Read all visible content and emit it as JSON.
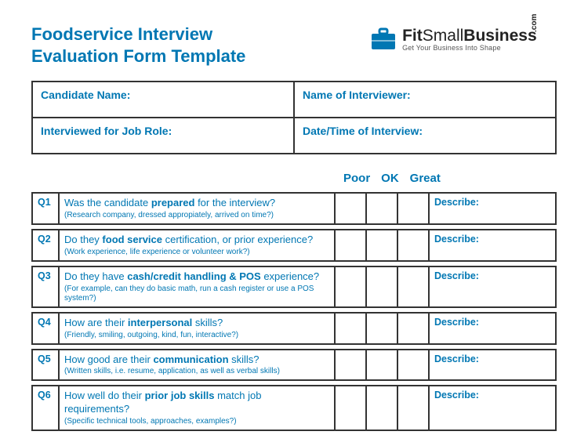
{
  "title_line1": "Foodservice Interview",
  "title_line2": "Evaluation Form Template",
  "logo": {
    "brand_main": "FitSmallBusiness",
    "brand_tag": "Get Your Business Into Shape",
    "dotcom": ".com",
    "icon_color": "#0077b3"
  },
  "colors": {
    "brand_blue": "#0077b3",
    "border": "#333333",
    "text_dark": "#222222",
    "background": "#ffffff"
  },
  "info_fields": {
    "candidate_name": "Candidate Name:",
    "interviewer_name": "Name of Interviewer:",
    "job_role": "Interviewed for Job Role:",
    "datetime": "Date/Time of Interview:"
  },
  "rating_labels": {
    "poor": "Poor",
    "ok": "OK",
    "great": "Great"
  },
  "describe_label": "Describe:",
  "questions": [
    {
      "id": "Q1",
      "main_pre": "Was the candidate ",
      "main_bold": "prepared",
      "main_post": " for the interview?",
      "sub": "(Research company, dressed appropiately, arrived on time?)"
    },
    {
      "id": "Q2",
      "main_pre": "Do they ",
      "main_bold": "food service",
      "main_post": " certification, or prior experience?",
      "sub": "(Work experience, life experience or volunteer work?)"
    },
    {
      "id": "Q3",
      "main_pre": "Do they have ",
      "main_bold": "cash/credit handling & POS",
      "main_post": " experience?",
      "sub": "(For example, can they do basic math, run a cash register or use a POS system?)"
    },
    {
      "id": "Q4",
      "main_pre": "How are their ",
      "main_bold": "interpersonal",
      "main_post": " skills?",
      "sub": "(Friendly, smiling, outgoing, kind, fun, interactive?)"
    },
    {
      "id": "Q5",
      "main_pre": "How good are their ",
      "main_bold": "communication",
      "main_post": " skills?",
      "sub": "(Written skills, i.e. resume, application, as well as verbal skills)"
    },
    {
      "id": "Q6",
      "main_pre": "How well do their ",
      "main_bold": "prior job skills",
      "main_post": " match job requirements?",
      "sub": "(Specific technical tools, approaches, examples?)"
    }
  ]
}
